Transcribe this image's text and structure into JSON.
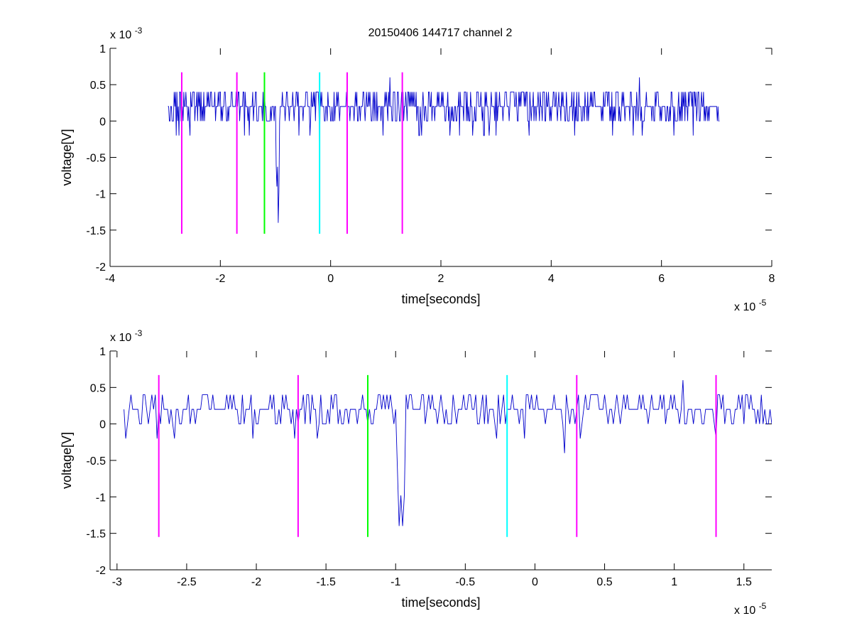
{
  "figure": {
    "title": "20150406 144717 channel 2"
  },
  "chart_data": [
    {
      "type": "line",
      "title": "20150406 144717 channel 2",
      "xlabel": "time[seconds]",
      "ylabel": "voltage[V]",
      "x_exponent_label": "x 10",
      "x_exponent_power": "-5",
      "y_exponent_label": "x 10",
      "y_exponent_power": "-3",
      "xlim": [
        -4,
        8
      ],
      "ylim": [
        -2,
        1
      ],
      "xticks": [
        -4,
        -2,
        0,
        2,
        4,
        6,
        8
      ],
      "xtick_labels": [
        "-4",
        "-2",
        "0",
        "2",
        "4",
        "6",
        "8"
      ],
      "yticks": [
        -2,
        -1.5,
        -1,
        -0.5,
        0,
        0.5,
        1
      ],
      "ytick_labels": [
        "-2",
        "-1.5",
        "-1",
        "-0.5",
        "0",
        "0.5",
        "1"
      ],
      "grid": false,
      "signal_color": "#0000cc",
      "signal": {
        "description_units": "x in 1e-5 s, y in 1e-3 V",
        "x_range": [
          -2.95,
          7.05
        ],
        "baseline": 0.2,
        "notable_points": [
          {
            "x": -2.95,
            "y": 0.2
          },
          {
            "x": -0.95,
            "y": -1.4
          },
          {
            "x": -0.97,
            "y": -0.9
          },
          {
            "x": -0.2,
            "y": -0.4
          },
          {
            "x": 5.6,
            "y": 0.6
          },
          {
            "x": 1.07,
            "y": 0.6
          },
          {
            "x": 7.05,
            "y": 0.0
          }
        ]
      },
      "markers": [
        {
          "x": -2.7,
          "y_min": -1.55,
          "y_max": 0.67,
          "color": "#ff00ff"
        },
        {
          "x": -1.7,
          "y_min": -1.55,
          "y_max": 0.67,
          "color": "#ff00ff"
        },
        {
          "x": -1.2,
          "y_min": -1.55,
          "y_max": 0.67,
          "color": "#00ff00"
        },
        {
          "x": -0.2,
          "y_min": -1.55,
          "y_max": 0.67,
          "color": "#00ffff"
        },
        {
          "x": 0.3,
          "y_min": -1.55,
          "y_max": 0.67,
          "color": "#ff00ff"
        },
        {
          "x": 1.3,
          "y_min": -1.55,
          "y_max": 0.67,
          "color": "#ff00ff"
        }
      ]
    },
    {
      "type": "line",
      "title": "",
      "xlabel": "time[seconds]",
      "ylabel": "voltage[V]",
      "x_exponent_label": "x 10",
      "x_exponent_power": "-5",
      "y_exponent_label": "x 10",
      "y_exponent_power": "-3",
      "xlim": [
        -3.05,
        1.7
      ],
      "ylim": [
        -2,
        1
      ],
      "xticks": [
        -3,
        -2.5,
        -2,
        -1.5,
        -1,
        -0.5,
        0,
        0.5,
        1,
        1.5
      ],
      "xtick_labels": [
        "-3",
        "-2.5",
        "-2",
        "-1.5",
        "-1",
        "-0.5",
        "0",
        "0.5",
        "1",
        "1.5"
      ],
      "yticks": [
        -2,
        -1.5,
        -1,
        -0.5,
        0,
        0.5,
        1
      ],
      "ytick_labels": [
        "-2",
        "-1.5",
        "-1",
        "-0.5",
        "0",
        "0.5",
        "1"
      ],
      "grid": false,
      "signal_color": "#0000cc",
      "signal": {
        "description_units": "x in 1e-5 s, y in 1e-3 V",
        "x_range": [
          -2.95,
          1.7
        ],
        "baseline": 0.2,
        "notable_points": [
          {
            "x": -2.95,
            "y": 0.2
          },
          {
            "x": -2.94,
            "y": -0.2
          },
          {
            "x": -1.72,
            "y": -0.2
          },
          {
            "x": -0.97,
            "y": -1.4
          },
          {
            "x": -0.95,
            "y": -1.4
          },
          {
            "x": 0.21,
            "y": -0.4
          },
          {
            "x": 1.06,
            "y": 0.6
          },
          {
            "x": 1.7,
            "y": 0.0
          }
        ]
      },
      "markers": [
        {
          "x": -2.7,
          "y_min": -1.55,
          "y_max": 0.67,
          "color": "#ff00ff"
        },
        {
          "x": -1.7,
          "y_min": -1.55,
          "y_max": 0.67,
          "color": "#ff00ff"
        },
        {
          "x": -1.2,
          "y_min": -1.55,
          "y_max": 0.67,
          "color": "#00ff00"
        },
        {
          "x": -0.2,
          "y_min": -1.55,
          "y_max": 0.67,
          "color": "#00ffff"
        },
        {
          "x": 0.3,
          "y_min": -1.55,
          "y_max": 0.67,
          "color": "#ff00ff"
        },
        {
          "x": 1.3,
          "y_min": -1.55,
          "y_max": 0.67,
          "color": "#ff00ff"
        }
      ]
    }
  ]
}
